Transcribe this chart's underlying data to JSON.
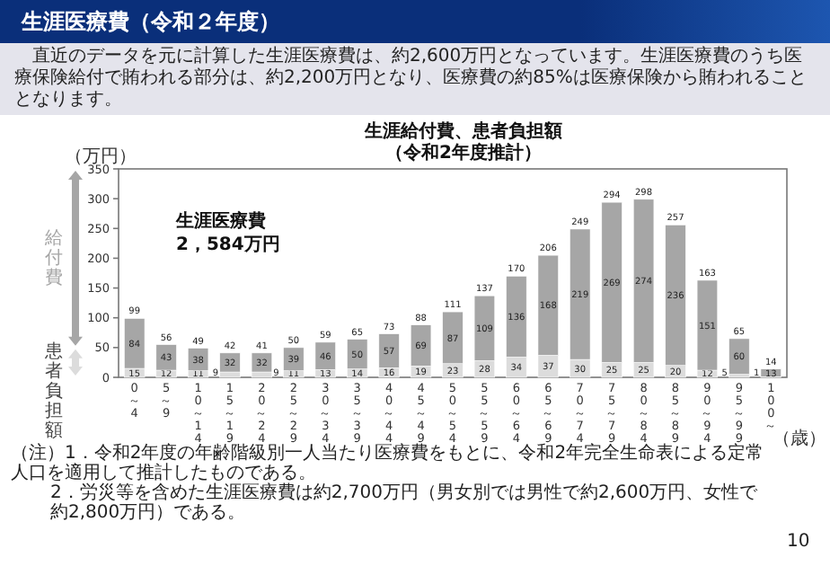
{
  "chart_data": {
    "type": "bar",
    "stacked": true,
    "title": "生涯給付費、患者負担額",
    "subtitle": "（令和2年度推計）",
    "ylabel": "（万円）",
    "xlabel": "（歳）",
    "categories": [
      "0～4",
      "5～9",
      "10～14",
      "15～19",
      "20～24",
      "25～29",
      "30～34",
      "35～39",
      "40～44",
      "45～49",
      "50～54",
      "55～59",
      "60～64",
      "65～69",
      "70～74",
      "75～79",
      "80～84",
      "85～89",
      "90～94",
      "95～99",
      "100～"
    ],
    "series": [
      {
        "name": "患者負担額",
        "color": "#dcdcdc",
        "values": [
          15,
          12,
          11,
          9,
          9,
          11,
          13,
          14,
          16,
          19,
          23,
          28,
          34,
          37,
          30,
          25,
          25,
          20,
          12,
          5,
          1
        ]
      },
      {
        "name": "給付費",
        "color": "#a6a6a6",
        "values": [
          84,
          43,
          38,
          32,
          32,
          39,
          46,
          50,
          57,
          69,
          87,
          109,
          136,
          168,
          219,
          269,
          274,
          236,
          151,
          60,
          13
        ]
      }
    ],
    "totals": [
      "99",
      "56",
      "49",
      "42",
      "41",
      "50",
      "59",
      "65",
      "73",
      "88",
      "111",
      "137",
      "170",
      "206",
      "249",
      "294",
      "298",
      "257",
      "163",
      "65",
      "14"
    ],
    "data_labels": true,
    "legend": "left",
    "ylim": [
      0,
      350
    ],
    "yticks": [
      0,
      50,
      100,
      150,
      200,
      250,
      300,
      350
    ],
    "annotations": [
      "生涯医療費（令和２年度）",
      "直近のデータを元に計算した生涯医療費は、約2,600万円となっています。生涯医療費のうち医療保険給付で賄われる部分は、約2,200万円となり、医療費の約85%は医療保険から賄われることとなります。",
      "生涯医療費\n2，584万円",
      "（注）1．令和2年度の年齢階級別一人当たり医療費をもとに、令和2年完全生命表による定常人口を適用して推計したものである。",
      "2．労災等を含めた生涯医療費は約2,700万円（男女別では男性で約2,600万円、女性で約2,800万円）である。",
      "10"
    ]
  }
}
